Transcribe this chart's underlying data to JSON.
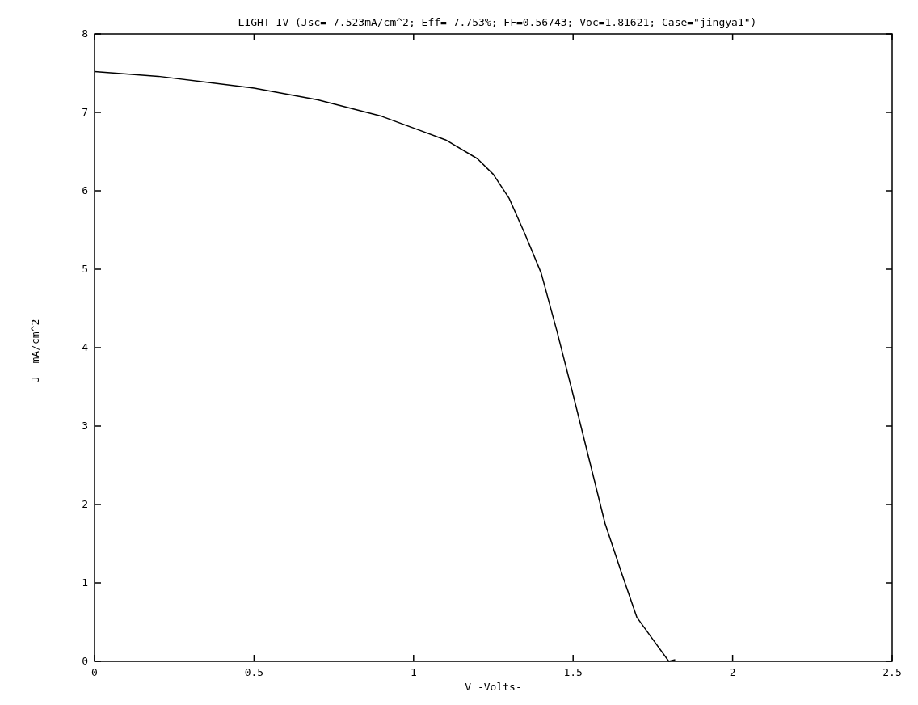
{
  "chart_data": {
    "type": "line",
    "title": "LIGHT IV (Jsc= 7.523mA/cm^2; Eff= 7.753%; FF=0.56743; Voc=1.81621; Case=\"jingya1\")",
    "xlabel": "V -Volts-",
    "ylabel": "J -mA/cm^2-",
    "xlim": [
      0,
      2.5
    ],
    "xticks": [
      {
        "value": 0,
        "label": "0"
      },
      0.5,
      1,
      1.5,
      2,
      2.5
    ],
    "ylim": [
      0,
      8
    ],
    "yticks": [
      {
        "value": 0,
        "label": "0"
      },
      1,
      2,
      3,
      4,
      5,
      6,
      7,
      8
    ],
    "grid": false,
    "marker": "none",
    "line_style": "solid",
    "series": [
      {
        "color": "#000000",
        "x": [
          0,
          0.2,
          0.5,
          0.7,
          0.9,
          1.0,
          1.1,
          1.2,
          1.25,
          1.3,
          1.35,
          1.4,
          1.45,
          1.5,
          1.55,
          1.6,
          1.65,
          1.7,
          1.75,
          1.8,
          1.82
        ],
        "values": [
          7.52,
          7.46,
          7.31,
          7.16,
          6.95,
          6.8,
          6.65,
          6.41,
          6.21,
          5.9,
          5.44,
          4.95,
          4.2,
          3.4,
          2.58,
          1.76,
          1.15,
          0.56,
          0.28,
          0,
          0.02
        ]
      }
    ]
  }
}
